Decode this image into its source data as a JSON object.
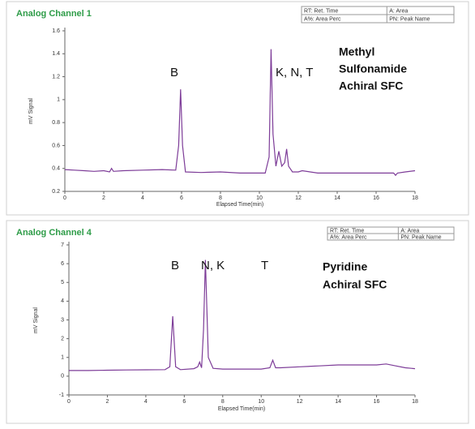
{
  "chart_data": [
    {
      "type": "line",
      "title": "Analog Channel 1",
      "legend_box": [
        [
          "RT: Ret. Time",
          "A: Area"
        ],
        [
          "A%: Area Perc",
          "PN: Peak Name"
        ]
      ],
      "xlabel": "Elapsed Time(min)",
      "ylabel": "mV Signal",
      "annotations": [
        "B",
        "K, N, T"
      ],
      "note": [
        "Methyl",
        "Sulfonamide",
        "Achiral SFC"
      ],
      "x": [
        0,
        0.5,
        1,
        1.5,
        2,
        2.3,
        2.4,
        2.5,
        3,
        4,
        5,
        5.7,
        5.85,
        5.95,
        6.05,
        6.2,
        7,
        8,
        9,
        10,
        10.3,
        10.5,
        10.6,
        10.7,
        10.85,
        11.0,
        11.15,
        11.3,
        11.4,
        11.5,
        11.7,
        12,
        12.2,
        13,
        14,
        15,
        16,
        16.9,
        17,
        17.1,
        17.5,
        18
      ],
      "values": [
        0.39,
        0.385,
        0.38,
        0.375,
        0.38,
        0.37,
        0.4,
        0.375,
        0.38,
        0.385,
        0.39,
        0.385,
        0.6,
        1.09,
        0.6,
        0.37,
        0.365,
        0.37,
        0.36,
        0.36,
        0.36,
        0.5,
        1.44,
        0.7,
        0.42,
        0.55,
        0.42,
        0.45,
        0.57,
        0.42,
        0.37,
        0.37,
        0.38,
        0.36,
        0.36,
        0.36,
        0.36,
        0.36,
        0.34,
        0.36,
        0.37,
        0.38
      ],
      "color": "#7d3c98",
      "xlim": [
        0,
        18
      ],
      "xticks": [
        0,
        2,
        4,
        6,
        8,
        10,
        12,
        14,
        16,
        18
      ],
      "ylim": [
        0.2,
        1.6
      ],
      "yticks": [
        0.2,
        0.4,
        0.6,
        0.8,
        1,
        1.2,
        1.4,
        1.6
      ]
    },
    {
      "type": "line",
      "title": "Analog Channel 4",
      "legend_box": [
        [
          "RT: Ret. Time",
          "A: Area"
        ],
        [
          "A%: Area Perc",
          "PN: Peak Name"
        ]
      ],
      "xlabel": "Elapsed Time(min)",
      "ylabel": "mV Signal",
      "annotations": [
        "B",
        "N, K",
        "T"
      ],
      "note": [
        "Pyridine",
        "Achiral SFC"
      ],
      "x": [
        0,
        0.5,
        1,
        2,
        3,
        4,
        5,
        5.25,
        5.4,
        5.55,
        5.8,
        6.5,
        6.7,
        6.8,
        6.9,
        7.0,
        7.1,
        7.25,
        7.5,
        8,
        9,
        10,
        10.45,
        10.6,
        10.75,
        11,
        12,
        13,
        14,
        15,
        16,
        16.5,
        17,
        17.5,
        18
      ],
      "values": [
        0.3,
        0.3,
        0.3,
        0.32,
        0.33,
        0.34,
        0.35,
        0.5,
        3.2,
        0.5,
        0.35,
        0.4,
        0.5,
        0.75,
        0.45,
        2.5,
        6.2,
        1.0,
        0.42,
        0.38,
        0.38,
        0.38,
        0.45,
        0.85,
        0.45,
        0.45,
        0.5,
        0.55,
        0.6,
        0.6,
        0.6,
        0.65,
        0.55,
        0.45,
        0.4
      ],
      "color": "#7d3c98",
      "xlim": [
        0,
        18
      ],
      "xticks": [
        0,
        2,
        4,
        6,
        8,
        10,
        12,
        14,
        16,
        18
      ],
      "ylim": [
        -1,
        7
      ],
      "yticks": [
        -1,
        0,
        1,
        2,
        3,
        4,
        5,
        6,
        7
      ]
    }
  ]
}
